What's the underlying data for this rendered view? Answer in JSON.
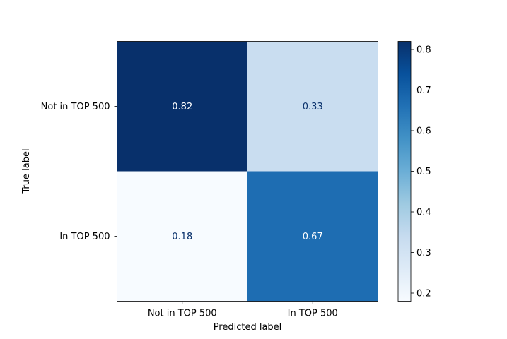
{
  "chart_data": {
    "type": "heatmap",
    "xlabel": "Predicted label",
    "ylabel": "True label",
    "x_categories": [
      "Not in TOP 500",
      "In TOP 500"
    ],
    "y_categories": [
      "Not in TOP 500",
      "In TOP 500"
    ],
    "values": [
      [
        0.82,
        0.33
      ],
      [
        0.18,
        0.67
      ]
    ],
    "cell_labels": [
      [
        "0.82",
        "0.33"
      ],
      [
        "0.18",
        "0.67"
      ]
    ],
    "colormap": "Blues",
    "colorbar": {
      "range": [
        0.18,
        0.82
      ],
      "ticks": [
        0.2,
        0.3,
        0.4,
        0.5,
        0.6,
        0.7,
        0.8
      ],
      "tick_labels": [
        "0.2",
        "0.3",
        "0.4",
        "0.5",
        "0.6",
        "0.7",
        "0.8"
      ]
    },
    "dark_text_color": "#08306b",
    "light_text_color": "#ffffff"
  }
}
